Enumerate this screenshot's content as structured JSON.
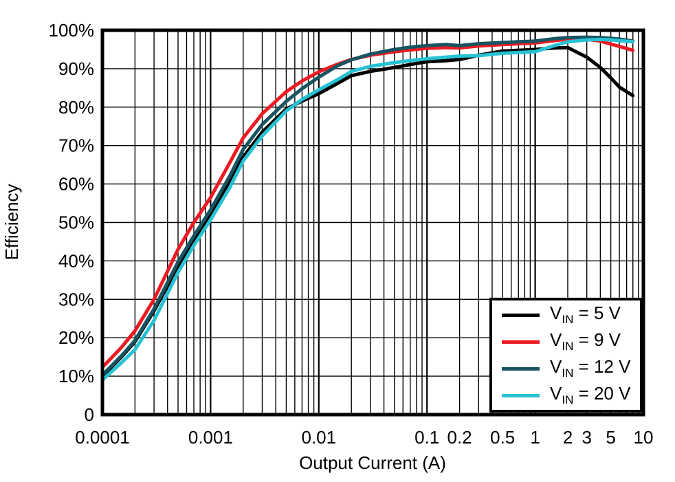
{
  "chart_data": {
    "type": "line",
    "title": "",
    "xlabel": "Output Current (A)",
    "ylabel": "Efficiency",
    "x_scale": "log",
    "xlim": [
      0.0001,
      10
    ],
    "ylim": [
      0,
      100
    ],
    "grid": "major and log-minor verticals on; horizontal majors every 10%",
    "legend_position": "inside bottom-right",
    "x_ticks": [
      {
        "value": 0.0001,
        "label": "0.0001"
      },
      {
        "value": 0.001,
        "label": "0.001"
      },
      {
        "value": 0.01,
        "label": "0.01"
      },
      {
        "value": 0.1,
        "label": "0.1"
      },
      {
        "value": 0.2,
        "label": "0.2"
      },
      {
        "value": 0.5,
        "label": "0.5"
      },
      {
        "value": 1,
        "label": "1"
      },
      {
        "value": 2,
        "label": "2"
      },
      {
        "value": 3,
        "label": "3"
      },
      {
        "value": 5,
        "label": "5"
      },
      {
        "value": 10,
        "label": "10"
      }
    ],
    "y_ticks": [
      {
        "value": 0,
        "label": "0"
      },
      {
        "value": 10,
        "label": "10%"
      },
      {
        "value": 20,
        "label": "20%"
      },
      {
        "value": 30,
        "label": "30%"
      },
      {
        "value": 40,
        "label": "40%"
      },
      {
        "value": 50,
        "label": "50%"
      },
      {
        "value": 60,
        "label": "60%"
      },
      {
        "value": 70,
        "label": "70%"
      },
      {
        "value": 80,
        "label": "80%"
      },
      {
        "value": 90,
        "label": "90%"
      },
      {
        "value": 100,
        "label": "100%"
      }
    ],
    "x": [
      0.0001,
      0.00015,
      0.0002,
      0.0003,
      0.0005,
      0.0007,
      0.001,
      0.0015,
      0.002,
      0.003,
      0.005,
      0.007,
      0.01,
      0.015,
      0.02,
      0.03,
      0.05,
      0.07,
      0.1,
      0.15,
      0.2,
      0.3,
      0.5,
      0.7,
      1,
      1.5,
      2,
      3,
      4,
      5,
      6,
      8
    ],
    "series": [
      {
        "id": "vin-5v",
        "name": "VIN = 5 V",
        "label_main": "V",
        "label_sub": "IN",
        "label_rest": " = 5 V",
        "color": "#000000",
        "values": [
          10,
          15,
          19,
          27,
          38.5,
          45.5,
          52,
          60.5,
          67,
          73.5,
          79.5,
          81.6,
          83.5,
          86.2,
          88.2,
          89.3,
          90.3,
          91.1,
          91.8,
          92.1,
          92.4,
          93.5,
          94.6,
          94.8,
          95,
          95.4,
          95.5,
          93,
          90.3,
          87.6,
          85.2,
          83
        ]
      },
      {
        "id": "vin-9v",
        "name": "VIN = 9 V",
        "label_main": "V",
        "label_sub": "IN",
        "label_rest": " = 9 V",
        "color": "#EC1B23",
        "values": [
          12.3,
          17.5,
          21.8,
          30,
          43,
          50,
          56.5,
          65.5,
          72,
          78.3,
          84,
          86.8,
          89.2,
          91.2,
          92.4,
          93.5,
          94.4,
          94.9,
          95.3,
          95.5,
          95.4,
          95.9,
          96.3,
          96.5,
          96.7,
          97.3,
          97.7,
          97.6,
          97.2,
          96.4,
          95.8,
          94.8
        ]
      },
      {
        "id": "vin-12v",
        "name": "VIN = 12 V",
        "label_main": "V",
        "label_sub": "IN",
        "label_rest": " = 12 V",
        "color": "#175361",
        "values": [
          10.3,
          15.3,
          19.3,
          27.5,
          39.7,
          46.5,
          53.3,
          62,
          69,
          75.5,
          81.5,
          84.8,
          87.8,
          90.8,
          92.3,
          93.8,
          95,
          95.6,
          96,
          96.3,
          96,
          96.5,
          96.8,
          97,
          97.2,
          97.8,
          98.1,
          98.2,
          98.1,
          97.9,
          97.7,
          97.2
        ]
      },
      {
        "id": "vin-20v",
        "name": "VIN = 20 V",
        "label_main": "V",
        "label_sub": "IN",
        "label_rest": " = 20 V",
        "color": "#27C2D4",
        "values": [
          9,
          13.5,
          16.9,
          24.5,
          37,
          44,
          50.7,
          59,
          66,
          72.5,
          79,
          82,
          84.5,
          87.2,
          89.3,
          90.6,
          91.6,
          92.1,
          92.6,
          93,
          93.3,
          93.4,
          94,
          94.2,
          94.4,
          96,
          97,
          97.5,
          97.6,
          97.5,
          97.3,
          97
        ]
      }
    ],
    "style": {
      "line_width": 5,
      "border_width": 5,
      "major_grid_width": 2.2,
      "minor_grid_width": 1.4,
      "grid_color": "#000000",
      "background": "#ffffff"
    }
  }
}
